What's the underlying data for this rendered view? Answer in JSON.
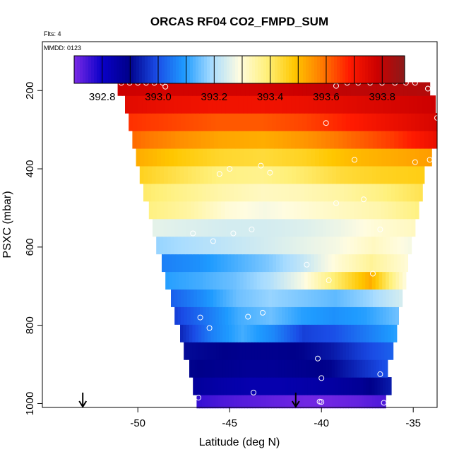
{
  "chart_data": {
    "type": "heatmap",
    "title": "ORCAS RF04 CO2_FMPD_SUM",
    "corner_note": "Flts: 4",
    "panel_note": "MMDD: 0123",
    "xlabel": "Latitude (deg N)",
    "ylabel": "PSXC (mbar)",
    "xlim": [
      -55.2,
      -33.7
    ],
    "ylim": [
      1010,
      75
    ],
    "x_ticks": [
      -50,
      -45,
      -40,
      -35
    ],
    "x_tick_labels": [
      "-50",
      "-45",
      "-40",
      "-35"
    ],
    "y_ticks": [
      200,
      400,
      600,
      800,
      1000
    ],
    "y_tick_labels": [
      "200",
      "400",
      "600",
      "800",
      "1000"
    ],
    "colorbar": {
      "range": [
        392.7,
        393.88
      ],
      "ticks": [
        392.8,
        393.0,
        393.2,
        393.4,
        393.6,
        393.8
      ],
      "tick_labels": [
        "392.8",
        "393.0",
        "393.2",
        "393.4",
        "393.6",
        "393.8"
      ],
      "colors": [
        "#7b2ae6",
        "#0a00c8",
        "#00008a",
        "#1a4ce6",
        "#1e9bff",
        "#a8dcff",
        "#fffce0",
        "#fff07a",
        "#ffc700",
        "#ff7a00",
        "#ff1a00",
        "#cc0000",
        "#8b1a1a"
      ]
    },
    "rows": [
      {
        "p": 1000,
        "west": -46.8,
        "east": -36.5,
        "values": [
          392.76,
          392.74,
          392.73,
          392.72,
          392.71,
          392.71,
          392.72,
          392.74
        ]
      },
      {
        "p": 955,
        "west": -47.0,
        "east": -36.2,
        "values": [
          392.87,
          392.85,
          392.84,
          392.84,
          392.85,
          392.86,
          392.88,
          392.93
        ]
      },
      {
        "p": 910,
        "west": -47.2,
        "east": -36.4,
        "values": [
          392.9,
          392.89,
          392.88,
          392.88,
          392.89,
          392.9,
          392.95,
          393.0
        ]
      },
      {
        "p": 865,
        "west": -47.5,
        "east": -36.1,
        "values": [
          392.91,
          392.9,
          392.89,
          392.89,
          392.9,
          392.93,
          392.98,
          393.02
        ]
      },
      {
        "p": 820,
        "west": -47.7,
        "east": -35.9,
        "values": [
          392.95,
          393.06,
          393.12,
          393.07,
          392.98,
          393.0,
          393.05,
          393.1
        ]
      },
      {
        "p": 775,
        "west": -48.0,
        "east": -35.8,
        "values": [
          392.98,
          393.05,
          393.12,
          393.15,
          393.1,
          393.08,
          393.1,
          393.15
        ]
      },
      {
        "p": 730,
        "west": -48.2,
        "east": -35.6,
        "values": [
          393.02,
          393.08,
          393.15,
          393.18,
          393.16,
          393.14,
          393.18,
          393.24
        ]
      },
      {
        "p": 685,
        "west": -48.5,
        "east": -35.4,
        "values": [
          393.1,
          393.12,
          393.15,
          393.2,
          393.28,
          393.4,
          393.52,
          393.3
        ]
      },
      {
        "p": 640,
        "west": -48.7,
        "east": -35.3,
        "values": [
          393.06,
          393.08,
          393.12,
          393.16,
          393.22,
          393.3,
          393.36,
          393.3
        ]
      },
      {
        "p": 595,
        "west": -49.0,
        "east": -35.1,
        "values": [
          393.18,
          393.2,
          393.22,
          393.24,
          393.26,
          393.28,
          393.32,
          393.28
        ]
      },
      {
        "p": 550,
        "west": -49.2,
        "east": -34.9,
        "values": [
          393.26,
          393.25,
          393.24,
          393.24,
          393.25,
          393.27,
          393.3,
          393.32
        ]
      },
      {
        "p": 505,
        "west": -49.4,
        "east": -34.7,
        "values": [
          393.38,
          393.35,
          393.3,
          393.28,
          393.3,
          393.32,
          393.34,
          393.38
        ]
      },
      {
        "p": 460,
        "west": -49.7,
        "east": -34.5,
        "values": [
          393.4,
          393.37,
          393.34,
          393.32,
          393.33,
          393.35,
          393.38,
          393.42
        ]
      },
      {
        "p": 415,
        "west": -49.9,
        "east": -34.4,
        "values": [
          393.46,
          393.42,
          393.38,
          393.37,
          393.4,
          393.44,
          393.46,
          393.47
        ]
      },
      {
        "p": 370,
        "west": -50.1,
        "east": -34.0,
        "values": [
          393.52,
          393.48,
          393.45,
          393.44,
          393.46,
          393.5,
          393.52,
          393.54
        ]
      },
      {
        "p": 325,
        "west": -50.3,
        "east": -33.7,
        "values": [
          393.6,
          393.56,
          393.53,
          393.52,
          393.55,
          393.6,
          393.65,
          393.72
        ]
      },
      {
        "p": 280,
        "west": -50.5,
        "east": -33.7,
        "values": [
          393.66,
          393.64,
          393.62,
          393.62,
          393.64,
          393.68,
          393.72,
          393.76
        ]
      },
      {
        "p": 235,
        "west": -50.7,
        "east": -33.8,
        "values": [
          393.74,
          393.72,
          393.71,
          393.71,
          393.72,
          393.74,
          393.76,
          393.78
        ]
      },
      {
        "p": 190,
        "west": -51.1,
        "east": -34.1,
        "values": [
          393.78,
          393.77,
          393.77,
          393.77,
          393.78,
          393.8,
          393.81,
          393.82
        ]
      }
    ],
    "points": [
      {
        "lat": -50.9,
        "p": 180
      },
      {
        "lat": -50.45,
        "p": 180
      },
      {
        "lat": -50.0,
        "p": 180
      },
      {
        "lat": -49.55,
        "p": 180
      },
      {
        "lat": -49.1,
        "p": 180
      },
      {
        "lat": -48.65,
        "p": 180
      },
      {
        "lat": -48.5,
        "p": 190
      },
      {
        "lat": -39.2,
        "p": 188
      },
      {
        "lat": -38.6,
        "p": 180
      },
      {
        "lat": -38.0,
        "p": 180
      },
      {
        "lat": -37.35,
        "p": 180
      },
      {
        "lat": -36.7,
        "p": 180
      },
      {
        "lat": -36.0,
        "p": 180
      },
      {
        "lat": -35.4,
        "p": 180
      },
      {
        "lat": -34.9,
        "p": 180
      },
      {
        "lat": -34.2,
        "p": 195
      },
      {
        "lat": -33.7,
        "p": 270
      },
      {
        "lat": -39.75,
        "p": 283
      },
      {
        "lat": -38.2,
        "p": 377
      },
      {
        "lat": -34.9,
        "p": 383
      },
      {
        "lat": -34.1,
        "p": 377
      },
      {
        "lat": -45.0,
        "p": 400
      },
      {
        "lat": -45.55,
        "p": 413
      },
      {
        "lat": -43.3,
        "p": 392
      },
      {
        "lat": -42.8,
        "p": 410
      },
      {
        "lat": -39.2,
        "p": 488
      },
      {
        "lat": -37.7,
        "p": 478
      },
      {
        "lat": -47.0,
        "p": 565
      },
      {
        "lat": -45.9,
        "p": 585
      },
      {
        "lat": -44.8,
        "p": 565
      },
      {
        "lat": -43.8,
        "p": 555
      },
      {
        "lat": -36.8,
        "p": 555
      },
      {
        "lat": -40.8,
        "p": 645
      },
      {
        "lat": -39.6,
        "p": 685
      },
      {
        "lat": -37.2,
        "p": 668
      },
      {
        "lat": -46.6,
        "p": 780
      },
      {
        "lat": -46.1,
        "p": 807
      },
      {
        "lat": -44.0,
        "p": 778
      },
      {
        "lat": -43.2,
        "p": 768
      },
      {
        "lat": -40.2,
        "p": 885
      },
      {
        "lat": -40.0,
        "p": 935
      },
      {
        "lat": -36.8,
        "p": 925
      },
      {
        "lat": -46.7,
        "p": 985
      },
      {
        "lat": -43.7,
        "p": 972
      },
      {
        "lat": -40.1,
        "p": 995
      },
      {
        "lat": -40.0,
        "p": 996
      },
      {
        "lat": -36.6,
        "p": 998
      }
    ],
    "arrows": [
      -53.0,
      -41.4
    ]
  }
}
